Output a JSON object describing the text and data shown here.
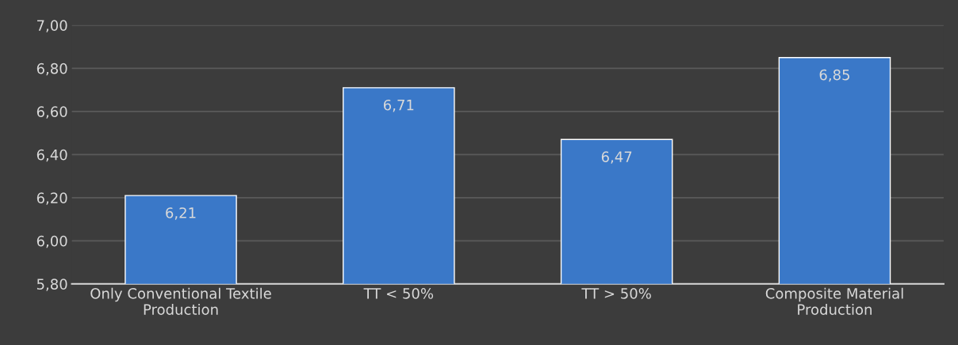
{
  "chart_data": {
    "type": "bar",
    "categories": [
      "Only Conventional Textile\nProduction",
      "TT < 50%",
      "TT > 50%",
      "Composite Material\nProduction"
    ],
    "values": [
      6.21,
      6.71,
      6.47,
      6.85
    ],
    "value_labels": [
      "6,21",
      "6,71",
      "6,47",
      "6,85"
    ],
    "color": "#3a78c8",
    "ylim": [
      5.8,
      7.0
    ],
    "yticks": [
      {
        "value": 5.8,
        "label": "5,80"
      },
      {
        "value": 6.0,
        "label": "6,00"
      },
      {
        "value": 6.2,
        "label": "6,20"
      },
      {
        "value": 6.4,
        "label": "6,40"
      },
      {
        "value": 6.6,
        "label": "6,60"
      },
      {
        "value": 6.8,
        "label": "6,80"
      },
      {
        "value": 7.0,
        "label": "7,00"
      }
    ],
    "grid": "y"
  }
}
